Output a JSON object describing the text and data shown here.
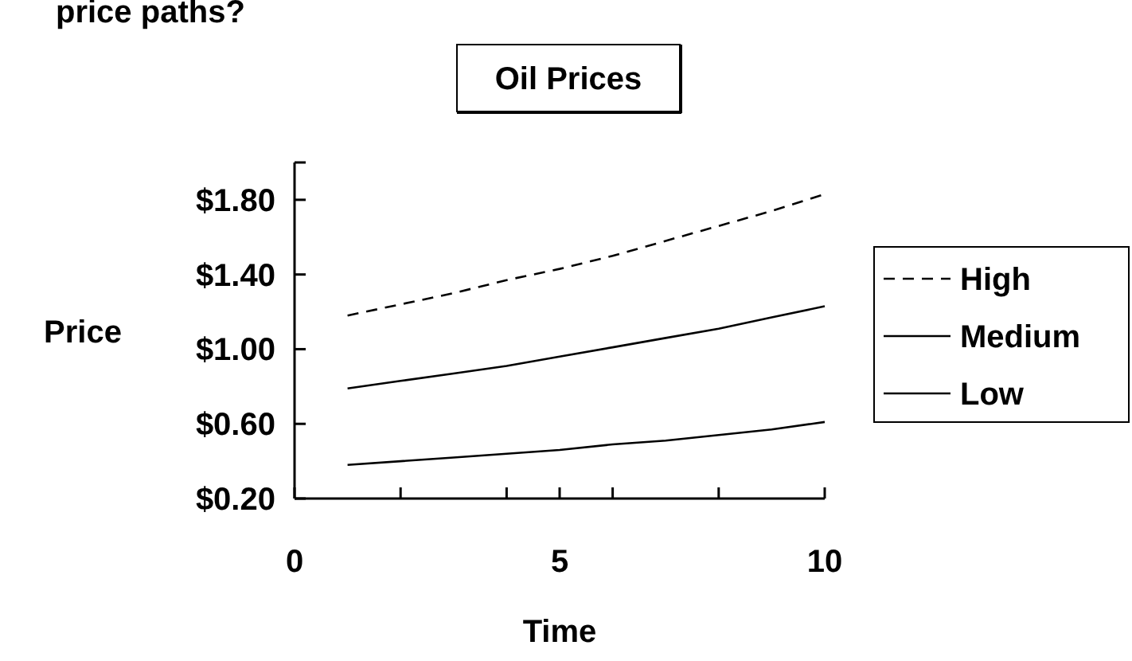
{
  "chart_data": {
    "type": "line",
    "title": "Oil Prices",
    "xlabel": "Time",
    "ylabel": "Price",
    "annotations": [
      "price paths?"
    ],
    "x": [
      1,
      2,
      3,
      4,
      5,
      6,
      7,
      8,
      9,
      10
    ],
    "series": [
      {
        "name": "High",
        "color": "#000000",
        "line_style": "dashed",
        "values": [
          1.18,
          1.24,
          1.3,
          1.37,
          1.43,
          1.5,
          1.58,
          1.66,
          1.74,
          1.83
        ]
      },
      {
        "name": "Medium",
        "color": "#000000",
        "line_style": "solid",
        "values": [
          0.79,
          0.83,
          0.87,
          0.91,
          0.96,
          1.01,
          1.06,
          1.11,
          1.17,
          1.23
        ]
      },
      {
        "name": "Low",
        "color": "#000000",
        "line_style": "solid",
        "values": [
          0.38,
          0.4,
          0.42,
          0.44,
          0.46,
          0.49,
          0.51,
          0.54,
          0.57,
          0.61
        ]
      }
    ],
    "xlim": [
      0,
      10
    ],
    "xticks": [
      0,
      {
        "value": 2,
        "label": null
      },
      {
        "value": 4,
        "label": null
      },
      5,
      {
        "value": 6,
        "label": null
      },
      {
        "value": 8,
        "label": null
      },
      10
    ],
    "ylim": [
      0.2,
      2.0
    ],
    "yticks": [
      {
        "value": 0.2,
        "label": "$0.20"
      },
      {
        "value": 0.6,
        "label": "$0.60"
      },
      {
        "value": 1.0,
        "label": "$1.00"
      },
      {
        "value": 1.4,
        "label": "$1.40"
      },
      {
        "value": 1.8,
        "label": "$1.80"
      },
      {
        "value": 2.0,
        "label": null
      }
    ],
    "grid": false,
    "legend": "right"
  }
}
